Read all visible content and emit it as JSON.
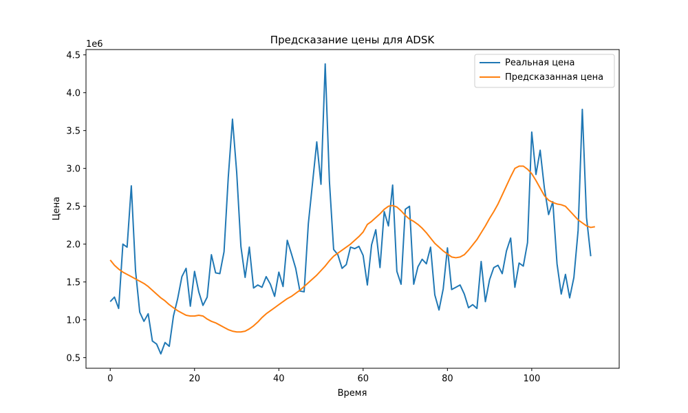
{
  "chart_data": {
    "type": "line",
    "title": "Предсказание цены для ADSK",
    "xlabel": "Время",
    "ylabel": "Цена",
    "y_multiplier_label": "1e6",
    "y_multiplier": 1000000,
    "xlim": [
      -5.75,
      120.75
    ],
    "ylim": [
      0.36,
      4.57
    ],
    "xticks": [
      0,
      20,
      40,
      60,
      80,
      100
    ],
    "yticks": [
      0.5,
      1.0,
      1.5,
      2.0,
      2.5,
      3.0,
      3.5,
      4.0,
      4.5
    ],
    "ytick_labels": [
      "0.5",
      "1.0",
      "1.5",
      "2.0",
      "2.5",
      "3.0",
      "3.5",
      "4.0",
      "4.5"
    ],
    "grid": false,
    "legend_position": "top-right",
    "series": [
      {
        "name": "Реальная цена",
        "color": "#1f77b4",
        "values": [
          1.24,
          1.3,
          1.15,
          2.0,
          1.96,
          2.77,
          1.65,
          1.1,
          0.98,
          1.08,
          0.72,
          0.68,
          0.55,
          0.7,
          0.65,
          1.05,
          1.28,
          1.57,
          1.68,
          1.18,
          1.64,
          1.37,
          1.19,
          1.3,
          1.86,
          1.62,
          1.61,
          1.9,
          2.88,
          3.65,
          2.95,
          1.97,
          1.56,
          1.96,
          1.42,
          1.46,
          1.43,
          1.57,
          1.47,
          1.31,
          1.63,
          1.44,
          2.05,
          1.87,
          1.68,
          1.38,
          1.37,
          2.27,
          2.81,
          3.35,
          2.79,
          4.38,
          2.83,
          1.93,
          1.86,
          1.68,
          1.73,
          1.96,
          1.94,
          1.97,
          1.85,
          1.46,
          1.99,
          2.19,
          1.69,
          2.43,
          2.24,
          2.78,
          1.64,
          1.47,
          2.46,
          2.5,
          1.47,
          1.7,
          1.8,
          1.74,
          1.96,
          1.33,
          1.13,
          1.41,
          1.95,
          1.4,
          1.43,
          1.46,
          1.34,
          1.16,
          1.2,
          1.15,
          1.77,
          1.24,
          1.53,
          1.69,
          1.72,
          1.61,
          1.91,
          2.08,
          1.43,
          1.75,
          1.71,
          2.02,
          3.48,
          2.92,
          3.24,
          2.74,
          2.39,
          2.56,
          1.74,
          1.34,
          1.6,
          1.29,
          1.56,
          2.18,
          3.78,
          2.35,
          1.84
        ]
      },
      {
        "name": "Предсказанная цена",
        "color": "#ff7f0e",
        "values": [
          1.79,
          1.72,
          1.67,
          1.63,
          1.6,
          1.57,
          1.54,
          1.51,
          1.48,
          1.44,
          1.39,
          1.34,
          1.29,
          1.25,
          1.2,
          1.16,
          1.12,
          1.09,
          1.06,
          1.05,
          1.05,
          1.06,
          1.05,
          1.01,
          0.98,
          0.96,
          0.93,
          0.9,
          0.87,
          0.85,
          0.84,
          0.84,
          0.85,
          0.88,
          0.92,
          0.97,
          1.03,
          1.08,
          1.12,
          1.16,
          1.2,
          1.24,
          1.28,
          1.31,
          1.35,
          1.39,
          1.44,
          1.49,
          1.54,
          1.59,
          1.65,
          1.71,
          1.78,
          1.84,
          1.88,
          1.92,
          1.96,
          2.0,
          2.05,
          2.1,
          2.16,
          2.26,
          2.3,
          2.35,
          2.4,
          2.46,
          2.5,
          2.51,
          2.49,
          2.44,
          2.38,
          2.33,
          2.3,
          2.26,
          2.21,
          2.15,
          2.08,
          2.01,
          1.96,
          1.91,
          1.87,
          1.83,
          1.82,
          1.83,
          1.86,
          1.92,
          1.99,
          2.06,
          2.15,
          2.24,
          2.34,
          2.43,
          2.53,
          2.65,
          2.77,
          2.89,
          3.0,
          3.03,
          3.03,
          2.99,
          2.93,
          2.84,
          2.74,
          2.64,
          2.58,
          2.55,
          2.53,
          2.52,
          2.5,
          2.44,
          2.38,
          2.32,
          2.28,
          2.24,
          2.22,
          2.23
        ]
      }
    ]
  }
}
